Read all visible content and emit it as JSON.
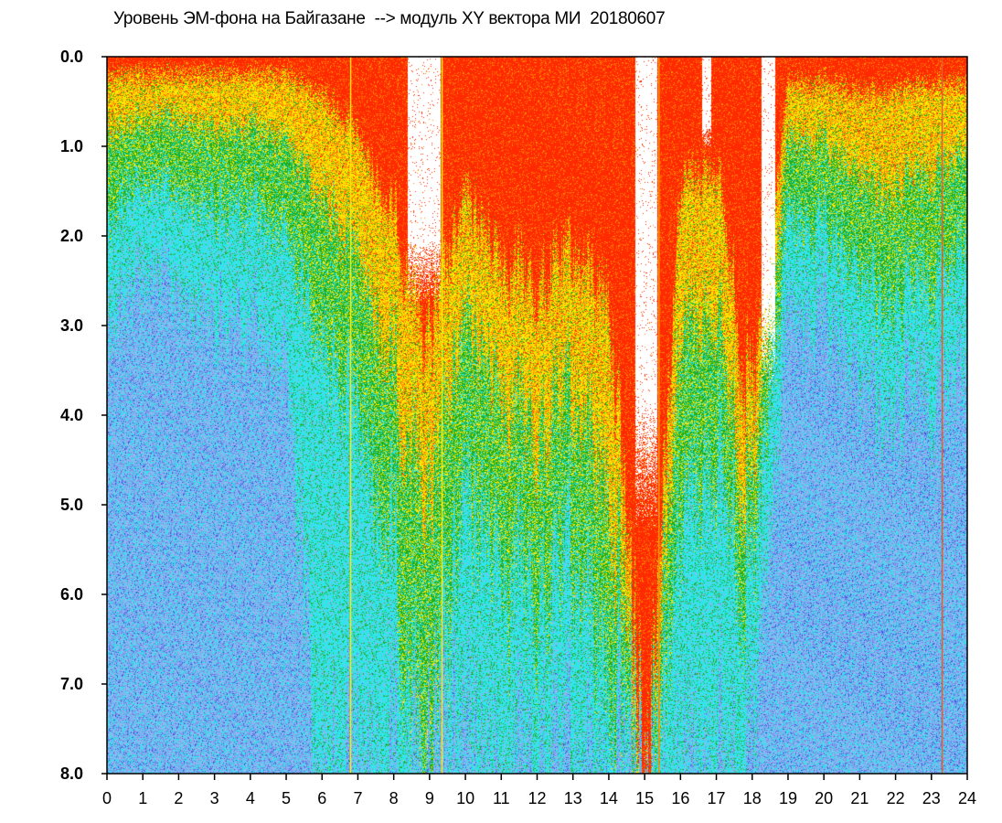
{
  "chart_data": {
    "type": "heatmap",
    "title": "Уровень ЭМ-фона на Байгазане  --> модуль XY вектора МИ  20180607",
    "xlabel": "",
    "ylabel": "",
    "xlim": [
      0,
      24
    ],
    "ylim": [
      0,
      8
    ],
    "y_inverted": true,
    "grid": false,
    "x_ticks": [
      "0",
      "1",
      "2",
      "3",
      "4",
      "5",
      "6",
      "7",
      "8",
      "9",
      "10",
      "11",
      "12",
      "13",
      "14",
      "15",
      "16",
      "17",
      "18",
      "19",
      "20",
      "21",
      "22",
      "23",
      "24"
    ],
    "y_ticks": [
      "0.0",
      "1.0",
      "2.0",
      "3.0",
      "4.0",
      "5.0",
      "6.0",
      "7.0",
      "8.0"
    ],
    "colors": {
      "red": "#ff2a00",
      "orange": "#ff8c00",
      "yellow": "#ffe600",
      "green": "#1fae1f",
      "cyan": "#2de6ea",
      "lightblue": "#8fb8f0",
      "blue": "#3b4fe0",
      "empty": "#ffffff"
    },
    "hour_profile": [
      {
        "hour": 0,
        "red_until": 0.2,
        "yellow_until": 0.8,
        "green_until": 1.7,
        "cyan_until": 2.8,
        "white_until": 0
      },
      {
        "hour": 1,
        "red_until": 0.2,
        "yellow_until": 0.7,
        "green_until": 1.4,
        "cyan_until": 2.4,
        "white_until": 0
      },
      {
        "hour": 2,
        "red_until": 0.2,
        "yellow_until": 0.7,
        "green_until": 1.5,
        "cyan_until": 2.6,
        "white_until": 0
      },
      {
        "hour": 3,
        "red_until": 0.2,
        "yellow_until": 0.8,
        "green_until": 1.6,
        "cyan_until": 2.8,
        "white_until": 0
      },
      {
        "hour": 4,
        "red_until": 0.2,
        "yellow_until": 0.8,
        "green_until": 1.7,
        "cyan_until": 3.0,
        "white_until": 0
      },
      {
        "hour": 5,
        "red_until": 0.2,
        "yellow_until": 0.9,
        "green_until": 2.0,
        "cyan_until": 3.4,
        "white_until": 0
      },
      {
        "hour": 6,
        "red_until": 0.4,
        "yellow_until": 1.5,
        "green_until": 3.0,
        "cyan_until": 8.0,
        "white_until": 0
      },
      {
        "hour": 7,
        "red_until": 0.9,
        "yellow_until": 2.2,
        "green_until": 4.0,
        "cyan_until": 8.0,
        "white_until": 0
      },
      {
        "hour": 8,
        "red_until": 1.8,
        "yellow_until": 3.5,
        "green_until": 5.5,
        "cyan_until": 8.0,
        "white_until": 1.2
      },
      {
        "hour": 9,
        "red_until": 3.2,
        "yellow_until": 5.0,
        "green_until": 8.0,
        "cyan_until": 8.0,
        "white_until": 2.4
      },
      {
        "hour": 10,
        "red_until": 1.6,
        "yellow_until": 3.0,
        "green_until": 5.0,
        "cyan_until": 8.0,
        "white_until": 0
      },
      {
        "hour": 11,
        "red_until": 2.2,
        "yellow_until": 3.6,
        "green_until": 5.4,
        "cyan_until": 8.0,
        "white_until": 0.3
      },
      {
        "hour": 12,
        "red_until": 2.6,
        "yellow_until": 4.2,
        "green_until": 6.0,
        "cyan_until": 8.0,
        "white_until": 0
      },
      {
        "hour": 13,
        "red_until": 2.2,
        "yellow_until": 3.8,
        "green_until": 5.6,
        "cyan_until": 8.0,
        "white_until": 0
      },
      {
        "hour": 14,
        "red_until": 2.6,
        "yellow_until": 4.6,
        "green_until": 6.6,
        "cyan_until": 8.0,
        "white_until": 0
      },
      {
        "hour": 15,
        "red_until": 8.0,
        "yellow_until": 8.0,
        "green_until": 8.0,
        "cyan_until": 8.0,
        "white_until": 4.6
      },
      {
        "hour": 16,
        "red_until": 1.4,
        "yellow_until": 3.0,
        "green_until": 5.0,
        "cyan_until": 8.0,
        "white_until": 0
      },
      {
        "hour": 17,
        "red_until": 1.2,
        "yellow_until": 2.8,
        "green_until": 4.4,
        "cyan_until": 8.0,
        "white_until": 0
      },
      {
        "hour": 18,
        "red_until": 4.0,
        "yellow_until": 5.0,
        "green_until": 6.0,
        "cyan_until": 8.0,
        "white_until": 0
      },
      {
        "hour": 19,
        "red_until": 0.3,
        "yellow_until": 0.9,
        "green_until": 1.8,
        "cyan_until": 2.9,
        "white_until": 0
      },
      {
        "hour": 20,
        "red_until": 0.3,
        "yellow_until": 1.0,
        "green_until": 2.0,
        "cyan_until": 3.0,
        "white_until": 0
      },
      {
        "hour": 21,
        "red_until": 0.4,
        "yellow_until": 1.3,
        "green_until": 2.4,
        "cyan_until": 3.5,
        "white_until": 0
      },
      {
        "hour": 22,
        "red_until": 0.4,
        "yellow_until": 1.5,
        "green_until": 2.8,
        "cyan_until": 4.0,
        "white_until": 0
      },
      {
        "hour": 23,
        "red_until": 0.3,
        "yellow_until": 1.2,
        "green_until": 2.4,
        "cyan_until": 3.6,
        "white_until": 0
      },
      {
        "hour": 24,
        "red_until": 0.3,
        "yellow_until": 1.0,
        "green_until": 2.0,
        "cyan_until": 3.2,
        "white_until": 0
      }
    ],
    "gaps": [
      {
        "x_start": 8.4,
        "x_end": 9.3,
        "y_from": 0,
        "y_to": 2.4
      },
      {
        "x_start": 14.75,
        "x_end": 15.35,
        "y_from": 0,
        "y_to": 4.6
      },
      {
        "x_start": 18.25,
        "x_end": 18.65,
        "y_from": 0,
        "y_to": 3.2
      },
      {
        "x_start": 16.6,
        "x_end": 16.85,
        "y_from": 0,
        "y_to": 0.9
      }
    ],
    "vertical_lines": [
      {
        "x": 23.3,
        "color": "#e06030"
      },
      {
        "x": 9.35,
        "color": "#ffe600"
      },
      {
        "x": 15.4,
        "color": "#ff8c00"
      },
      {
        "x": 6.8,
        "color": "#ffe600"
      }
    ]
  }
}
